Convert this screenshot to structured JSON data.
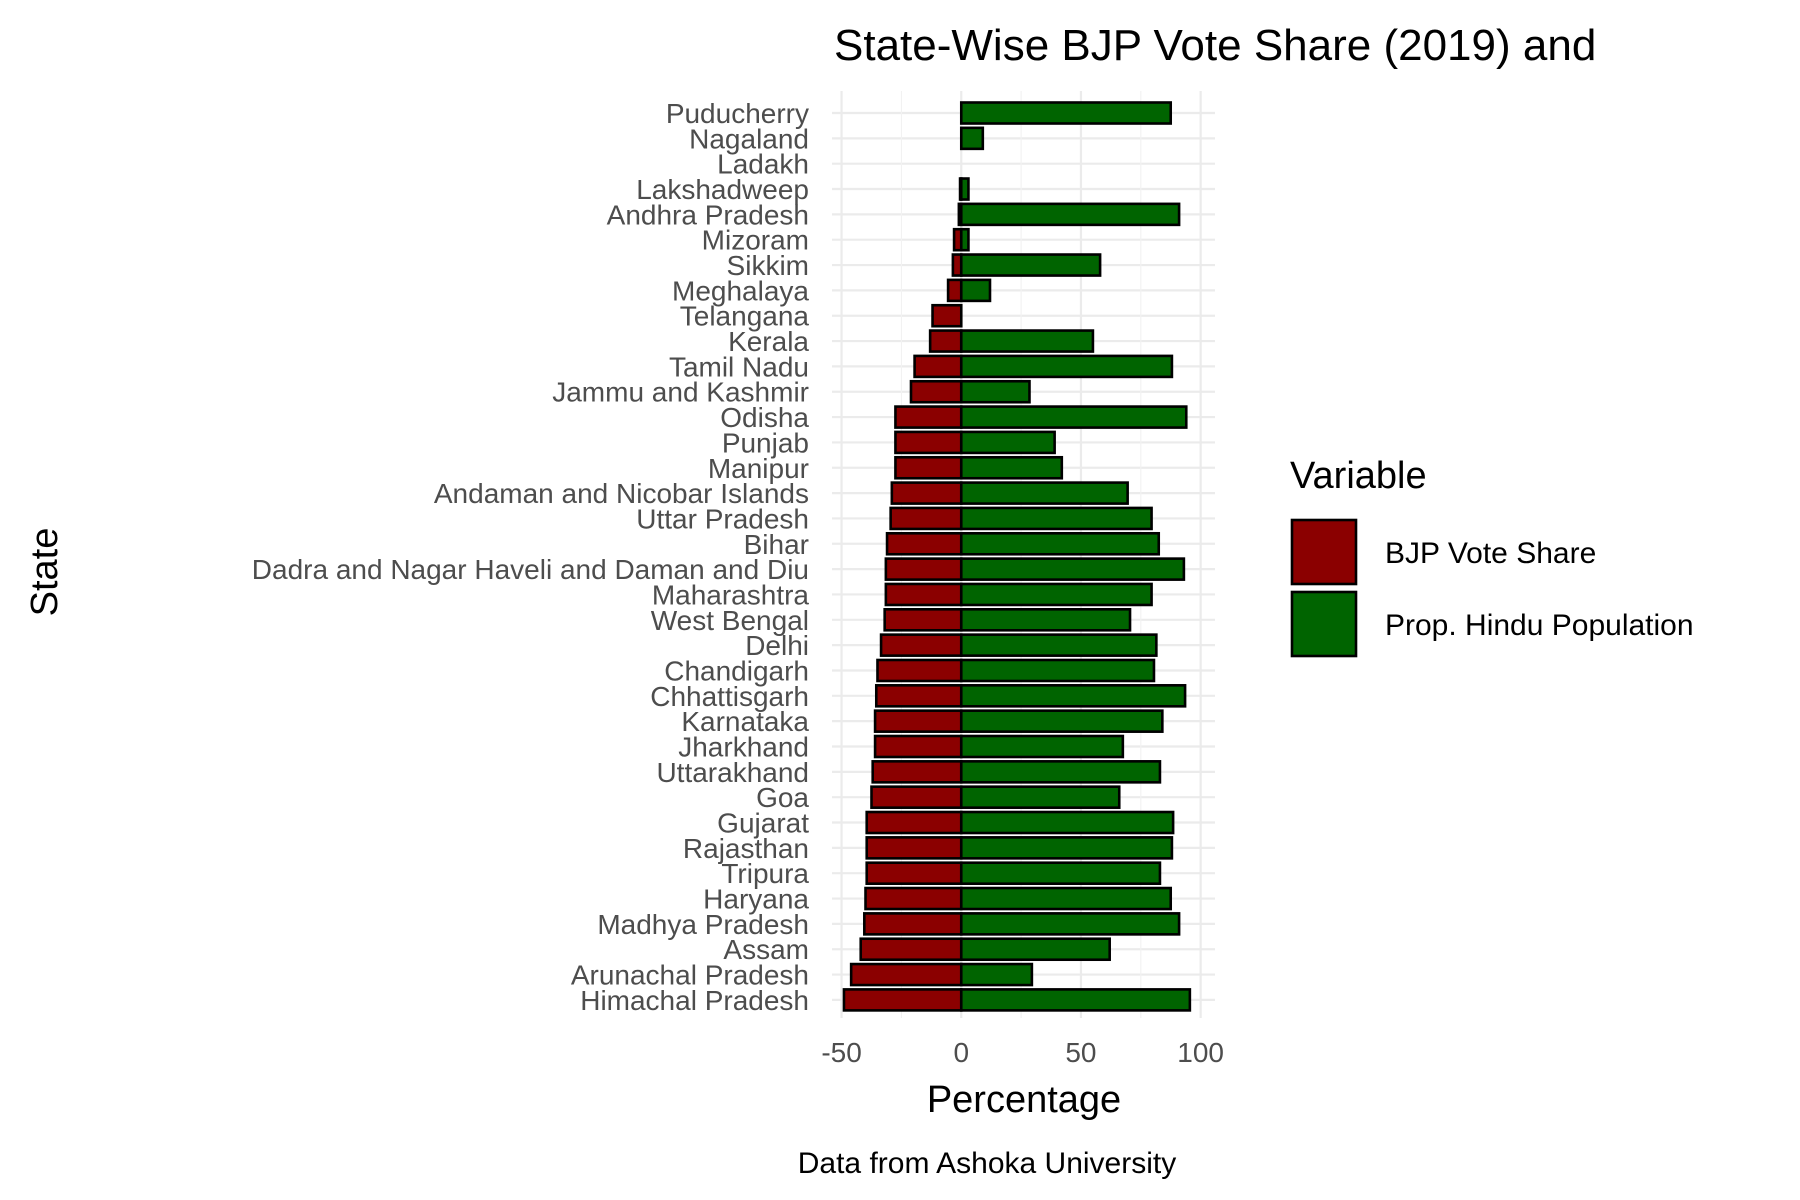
{
  "chart_data": {
    "type": "bar",
    "orientation": "horizontal",
    "title": "State-Wise BJP Vote Share (2019) and",
    "xlabel": "Percentage",
    "ylabel": "State",
    "caption": "Data from Ashoka University",
    "xlim": [
      -54,
      106
    ],
    "x_ticks": [
      -50,
      0,
      50,
      100
    ],
    "x_tick_labels": [
      "-50",
      "0",
      "50",
      "100"
    ],
    "grid": true,
    "legend": {
      "title": "Variable",
      "placement": "right"
    },
    "categories": [
      "Puducherry",
      "Nagaland",
      "Ladakh",
      "Lakshadweep",
      "Andhra Pradesh",
      "Mizoram",
      "Sikkim",
      "Meghalaya",
      "Telangana",
      "Kerala",
      "Tamil Nadu",
      "Jammu and Kashmir",
      "Odisha",
      "Punjab",
      "Manipur",
      "Andaman and Nicobar Islands",
      "Uttar Pradesh",
      "Bihar",
      "Dadra and Nagar Haveli and Daman and Diu",
      "Maharashtra",
      "West Bengal",
      "Delhi",
      "Chandigarh",
      "Chhattisgarh",
      "Karnataka",
      "Jharkhand",
      "Uttarakhand",
      "Goa",
      "Gujarat",
      "Rajasthan",
      "Tripura",
      "Haryana",
      "Madhya Pradesh",
      "Assam",
      "Arunachal Pradesh",
      "Himachal Pradesh"
    ],
    "series": [
      {
        "name": "BJP Vote Share",
        "color": "#8b0000",
        "values": [
          0,
          0,
          0,
          -0.5,
          -1,
          -3,
          -3.5,
          -5.5,
          -12,
          -13,
          -19.5,
          -21,
          -27.5,
          -27.5,
          -27.5,
          -29,
          -29.5,
          -31,
          -31.5,
          -31.5,
          -32,
          -33.5,
          -35,
          -35.5,
          -36,
          -36,
          -37,
          -37.5,
          -39.5,
          -39.5,
          -39.5,
          -40,
          -40.5,
          -42,
          -46,
          -49
        ]
      },
      {
        "name": "Prop. Hindu Population",
        "color": "#006400",
        "values": [
          87.5,
          9,
          0,
          3,
          91,
          3,
          58,
          12,
          0,
          55,
          88,
          28.5,
          94,
          39,
          42,
          69.5,
          79.5,
          82.5,
          93,
          79.5,
          70.5,
          81.5,
          80.5,
          93.5,
          84,
          67.5,
          83,
          66,
          88.5,
          88,
          83,
          87.5,
          91,
          62,
          29.5,
          95.5
        ]
      }
    ]
  }
}
